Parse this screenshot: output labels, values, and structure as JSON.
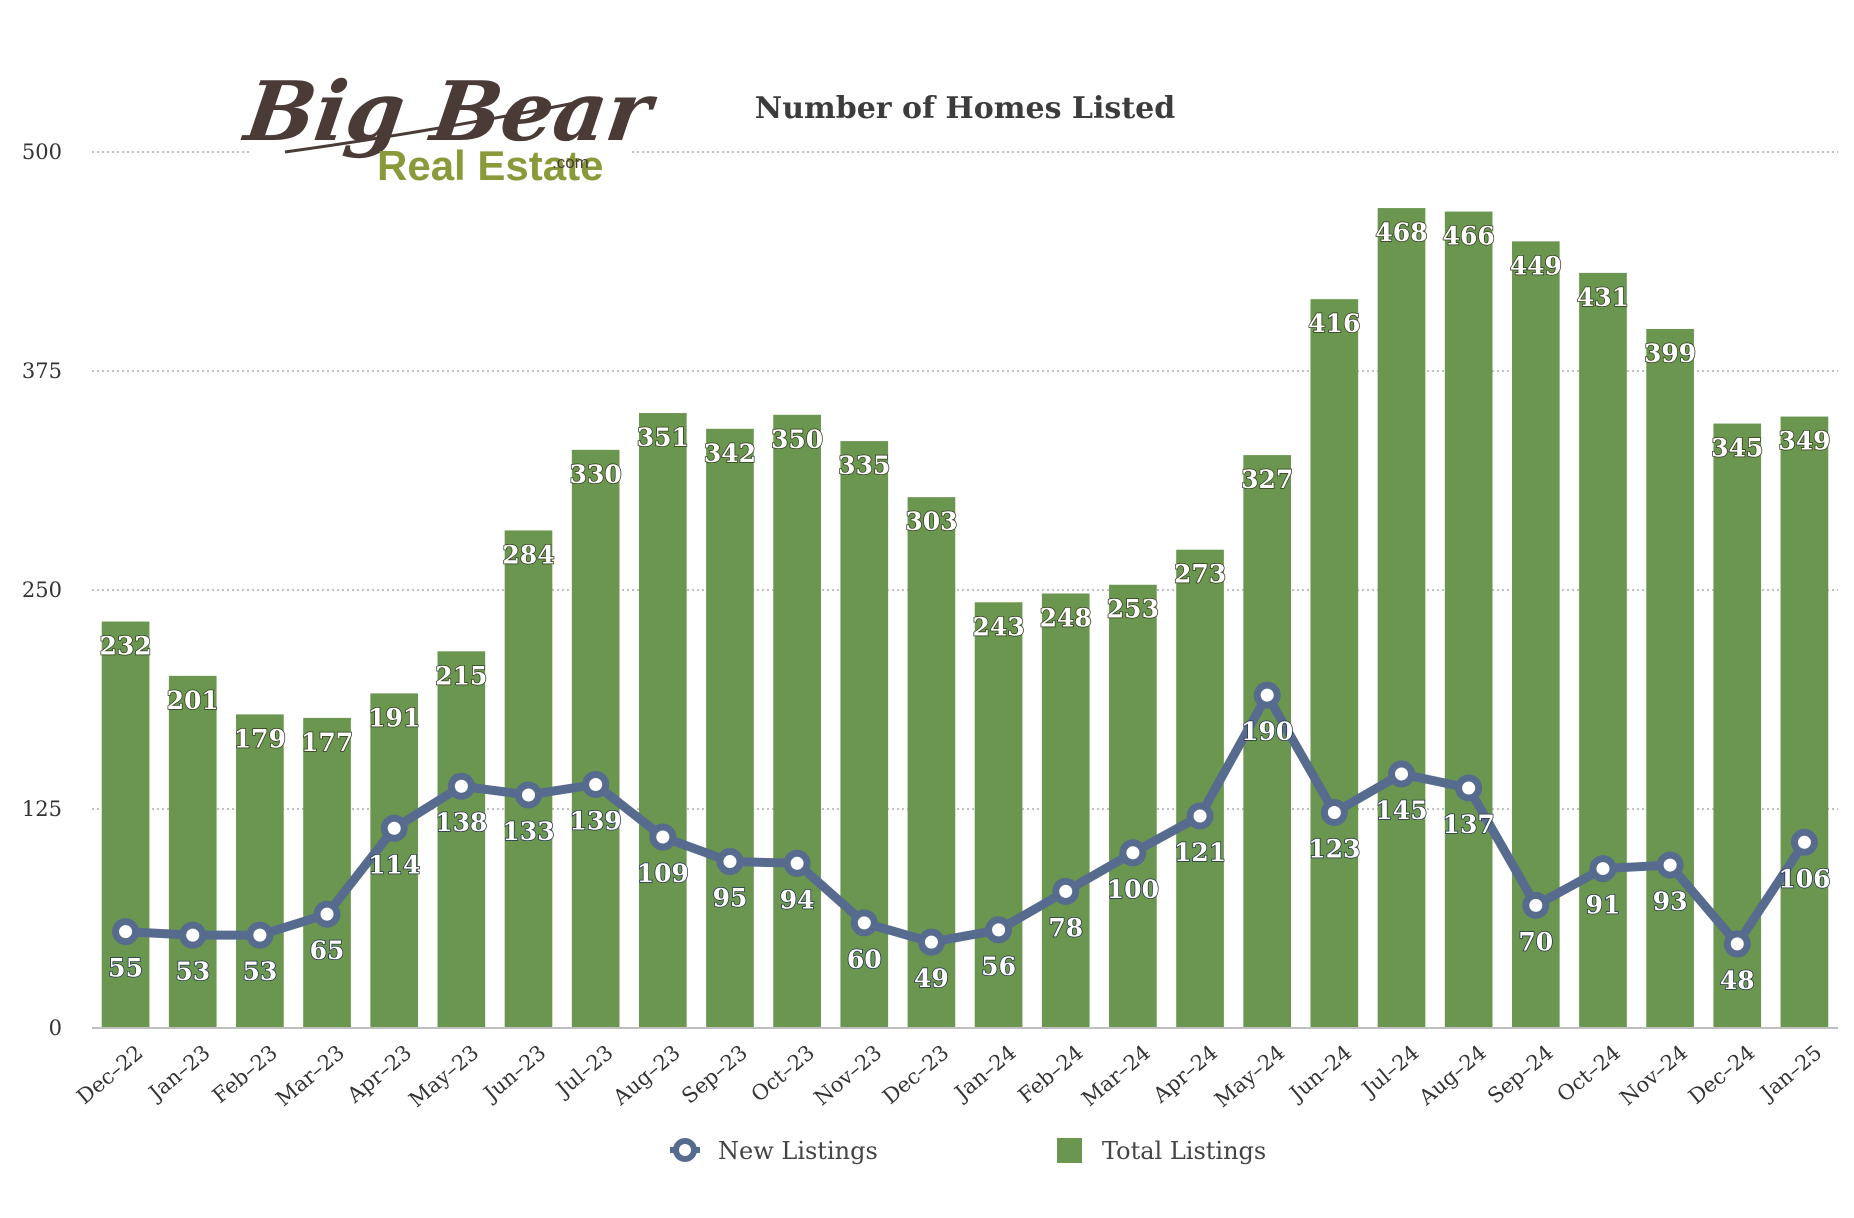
{
  "logo": {
    "line1": "Big Bear",
    "line2": "Real Estate",
    "suffix": ".com"
  },
  "chart_data": {
    "type": "bar",
    "title": "Number of Homes Listed",
    "categories": [
      "Dec–22",
      "Jan–23",
      "Feb–23",
      "Mar–23",
      "Apr–23",
      "May–23",
      "Jun–23",
      "Jul–23",
      "Aug–23",
      "Sep–23",
      "Oct–23",
      "Nov–23",
      "Dec–23",
      "Jan–24",
      "Feb–24",
      "Mar–24",
      "Apr–24",
      "May–24",
      "Jun–24",
      "Jul–24",
      "Aug–24",
      "Sep–24",
      "Oct–24",
      "Nov–24",
      "Dec–24",
      "Jan–25"
    ],
    "series": [
      {
        "name": "Total Listings",
        "type": "bar",
        "color": "#6b9650",
        "values": [
          232,
          201,
          179,
          177,
          191,
          215,
          284,
          330,
          351,
          342,
          350,
          335,
          303,
          243,
          248,
          253,
          273,
          327,
          416,
          468,
          466,
          449,
          431,
          399,
          345,
          349
        ]
      },
      {
        "name": "New Listings",
        "type": "line",
        "color": "#566b8e",
        "values": [
          55,
          53,
          53,
          65,
          114,
          138,
          133,
          139,
          109,
          95,
          94,
          60,
          49,
          56,
          78,
          100,
          121,
          190,
          123,
          145,
          137,
          70,
          91,
          93,
          48,
          106
        ]
      }
    ],
    "ylim": [
      0,
      500
    ],
    "yticks": [
      0,
      125,
      250,
      375,
      500
    ],
    "grid": true,
    "legend_position": "bottom-center"
  }
}
